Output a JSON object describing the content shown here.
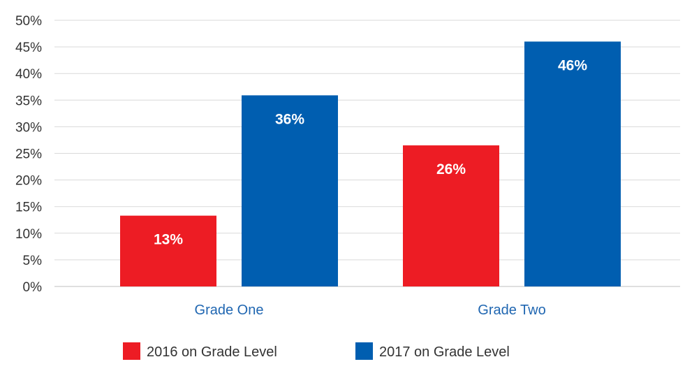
{
  "chart_data": {
    "type": "bar",
    "categories": [
      "Grade One",
      "Grade Two"
    ],
    "series": [
      {
        "name": "2016 on Grade Level",
        "values": [
          13.3,
          26.5
        ],
        "labels": [
          "13%",
          "26%"
        ],
        "color": "#ED1C24"
      },
      {
        "name": "2017 on Grade Level",
        "values": [
          35.9,
          46.0
        ],
        "labels": [
          "36%",
          "46%"
        ],
        "color": "#005EB0"
      }
    ],
    "ylim": [
      0,
      50
    ],
    "yticks": [
      "0%",
      "5%",
      "10%",
      "15%",
      "20%",
      "25%",
      "30%",
      "35%",
      "40%",
      "45%",
      "50%"
    ],
    "grid": true,
    "legend_position": "bottom-center",
    "category_label_color": "#1F66B1",
    "gridline_color": "#D9D9D9",
    "axis_line_color": "#BFBFBF",
    "title": "",
    "xlabel": "",
    "ylabel": ""
  }
}
